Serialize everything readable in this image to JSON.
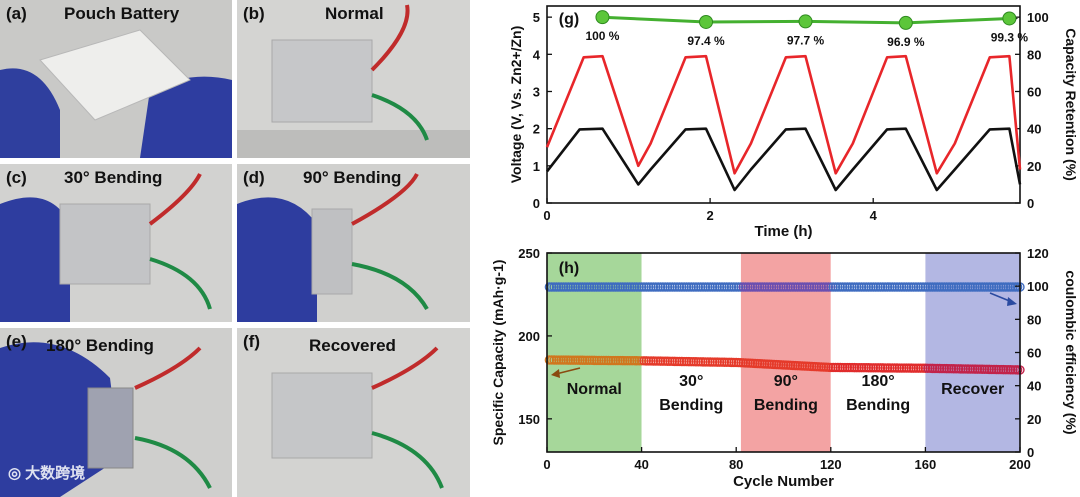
{
  "panels": {
    "a": {
      "label": "(a)",
      "title": "Pouch Battery"
    },
    "b": {
      "label": "(b)",
      "title": "Normal"
    },
    "c": {
      "label": "(c)",
      "title": "30° Bending"
    },
    "d": {
      "label": "(d)",
      "title": "90° Bending"
    },
    "e": {
      "label": "(e)",
      "title": "180° Bending"
    },
    "f": {
      "label": "(f)",
      "title": "Recovered"
    }
  },
  "watermark": "大数跨境",
  "chart_data": [
    {
      "id": "g",
      "type": "line",
      "label": "(g)",
      "xlabel": "Time (h)",
      "ylabel_left": "Voltage (V, Vs. Zn2+/Zn)",
      "ylabel_right": "Capacity Retention (%)",
      "xlim": [
        0,
        5.8
      ],
      "ylim_left": [
        0,
        5.3
      ],
      "ylim_right": [
        0,
        106
      ],
      "xticks": [
        0,
        2,
        4
      ],
      "yticks_left": [
        0,
        1,
        2,
        3,
        4,
        5
      ],
      "yticks_right": [
        0,
        20,
        40,
        60,
        80,
        100
      ],
      "series": [
        {
          "name": "red voltage",
          "color": "#e8262a",
          "x": [
            0,
            0.45,
            0.68,
            1.12,
            1.27,
            1.7,
            1.95,
            2.3,
            2.5,
            2.93,
            3.17,
            3.54,
            3.75,
            4.17,
            4.4,
            4.78,
            5.0,
            5.43,
            5.67,
            5.8
          ],
          "y": [
            1.5,
            3.92,
            3.95,
            1.0,
            1.6,
            3.92,
            3.95,
            0.8,
            1.6,
            3.92,
            3.95,
            0.8,
            1.6,
            3.92,
            3.95,
            0.8,
            1.6,
            3.92,
            3.95,
            0.9
          ]
        },
        {
          "name": "black voltage",
          "color": "#111111",
          "x": [
            0,
            0.4,
            0.68,
            1.12,
            1.27,
            1.7,
            1.95,
            2.3,
            2.5,
            2.93,
            3.17,
            3.54,
            3.75,
            4.17,
            4.4,
            4.78,
            5.0,
            5.43,
            5.67,
            5.8
          ],
          "y": [
            0.85,
            1.98,
            2.0,
            0.5,
            0.9,
            1.98,
            2.0,
            0.35,
            0.9,
            1.98,
            2.0,
            0.35,
            0.9,
            1.98,
            2.0,
            0.35,
            0.9,
            1.98,
            2.0,
            0.5
          ]
        },
        {
          "name": "Capacity Retention",
          "color": "#44b030",
          "axis": "right",
          "x": [
            0.68,
            1.95,
            3.17,
            4.4,
            5.67
          ],
          "y": [
            100,
            97.4,
            97.7,
            96.9,
            99.3
          ],
          "labels": [
            "100 %",
            "97.4 %",
            "97.7 %",
            "96.9 %",
            "99.3 %"
          ]
        }
      ]
    },
    {
      "id": "h",
      "type": "scatter",
      "label": "(h)",
      "xlabel": "Cycle Number",
      "ylabel_left": "Specific Capacity (mAh·g-1)",
      "ylabel_right": "coulombic efficiency (%)",
      "xlim": [
        0,
        200
      ],
      "ylim_left": [
        130,
        250
      ],
      "ylim_right": [
        0,
        120
      ],
      "xticks": [
        0,
        40,
        80,
        120,
        160,
        200
      ],
      "yticks_left": [
        150,
        200,
        250
      ],
      "yticks_right": [
        0,
        20,
        40,
        60,
        80,
        100,
        120
      ],
      "regions": [
        {
          "start": 0,
          "end": 40,
          "color": "#a6d79a",
          "label": "Normal"
        },
        {
          "start": 40,
          "end": 82,
          "color": "#ffffff",
          "label": "30° Bending"
        },
        {
          "start": 82,
          "end": 120,
          "color": "#f3a3a3",
          "label": "90° Bending"
        },
        {
          "start": 120,
          "end": 160,
          "color": "#ffffff",
          "label": "180° Bending"
        },
        {
          "start": 160,
          "end": 200,
          "color": "#b3b7e3",
          "label": "Recover"
        }
      ],
      "series": [
        {
          "name": "Specific Capacity",
          "axis": "left",
          "color": "#e02020",
          "x_range": [
            1,
            200
          ],
          "y_profile": [
            [
              1,
              185.5
            ],
            [
              40,
              185
            ],
            [
              80,
              184
            ],
            [
              120,
              181
            ],
            [
              160,
              180.5
            ],
            [
              200,
              179.5
            ]
          ]
        },
        {
          "name": "Coulombic efficiency",
          "axis": "right",
          "color": "#3a5fb0",
          "x_range": [
            1,
            200
          ],
          "y": 99.5
        }
      ]
    }
  ]
}
